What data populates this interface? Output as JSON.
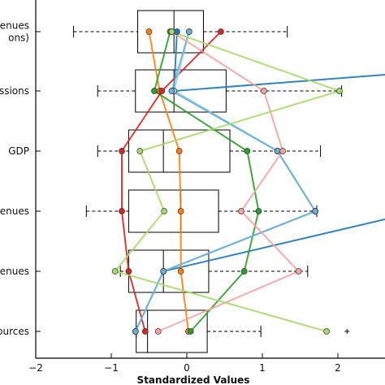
{
  "chart_data": {
    "type": "boxplot",
    "title": "",
    "xlabel": "Standardized Values",
    "ylabel": "",
    "xlim": [
      -2,
      2.65
    ],
    "x_ticks": [
      -2,
      -1,
      0,
      1,
      2
    ],
    "x_tick_labels": [
      "−2",
      "−1",
      "0",
      "1",
      "2"
    ],
    "grid": false,
    "legend": "none",
    "categories": [
      {
        "label_lines": [
          "enues",
          "ons)"
        ]
      },
      {
        "label_lines": [
          "ssions"
        ]
      },
      {
        "label_lines": [
          "GDP"
        ]
      },
      {
        "label_lines": [
          "enues"
        ]
      },
      {
        "label_lines": [
          "enues"
        ]
      },
      {
        "label_lines": [
          "ources"
        ]
      }
    ],
    "boxes": [
      {
        "whisker_low": -1.5,
        "q1": -0.65,
        "median": -0.17,
        "q3": 0.22,
        "whisker_high": 1.33,
        "outliers": []
      },
      {
        "whisker_low": -1.18,
        "q1": -0.68,
        "median": -0.17,
        "q3": 0.52,
        "whisker_high": 2.05,
        "outliers": []
      },
      {
        "whisker_low": -1.18,
        "q1": -0.77,
        "median": -0.31,
        "q3": 0.57,
        "whisker_high": 1.77,
        "outliers": []
      },
      {
        "whisker_low": -1.33,
        "q1": -0.77,
        "median": -0.08,
        "q3": 0.42,
        "whisker_high": 1.72,
        "outliers": []
      },
      {
        "whisker_low": -0.88,
        "q1": -0.77,
        "median": -0.31,
        "q3": 0.29,
        "whisker_high": 1.6,
        "outliers": []
      },
      {
        "whisker_low": -0.67,
        "q1": -0.67,
        "median": -0.52,
        "q3": 0.27,
        "whisker_high": 0.98,
        "outliers": [
          1.97
        ]
      }
    ],
    "series": [
      {
        "color": "#1f77b4",
        "values": [
          -0.13,
          -0.17,
          1.2,
          1.7,
          -0.31,
          -0.68
        ],
        "exit_right": [
          null,
          1.4,
          null,
          null,
          4.5,
          null
        ]
      },
      {
        "color": "#ff7f0e",
        "values": [
          -0.5,
          -0.36,
          -0.1,
          -0.08,
          -0.08,
          0.02
        ],
        "exit_right": [
          null,
          null,
          null,
          null,
          null,
          null
        ]
      },
      {
        "color": "#2ca02c",
        "values": [
          -0.22,
          -0.43,
          0.8,
          0.95,
          0.76,
          0.05
        ],
        "exit_right": [
          null,
          null,
          null,
          null,
          null,
          null
        ]
      },
      {
        "color": "#d62728",
        "values": [
          0.45,
          -0.33,
          -0.86,
          -0.86,
          -0.77,
          -0.55
        ],
        "exit_right": [
          null,
          null,
          null,
          null,
          null,
          null
        ]
      },
      {
        "color": "#9edae5",
        "values": [
          0.03,
          -0.17,
          1.2,
          1.7,
          -0.31,
          -0.68
        ],
        "exit_right": [
          null,
          null,
          null,
          null,
          null,
          null
        ]
      },
      {
        "color": "#6baed6",
        "values": [
          0.03,
          -0.2,
          1.2,
          1.7,
          -0.31,
          -0.68
        ],
        "exit_right": [
          null,
          null,
          null,
          null,
          null,
          null
        ]
      },
      {
        "color": "#f4a3a0",
        "values": [
          -0.2,
          1.02,
          1.27,
          0.72,
          1.48,
          -0.38
        ],
        "exit_right": [
          null,
          null,
          null,
          null,
          null,
          null
        ]
      },
      {
        "color": "#a6d96a",
        "values": [
          -0.2,
          2.02,
          -0.62,
          -0.3,
          -0.95,
          1.85
        ],
        "exit_right": [
          null,
          null,
          null,
          null,
          null,
          null
        ]
      }
    ]
  }
}
